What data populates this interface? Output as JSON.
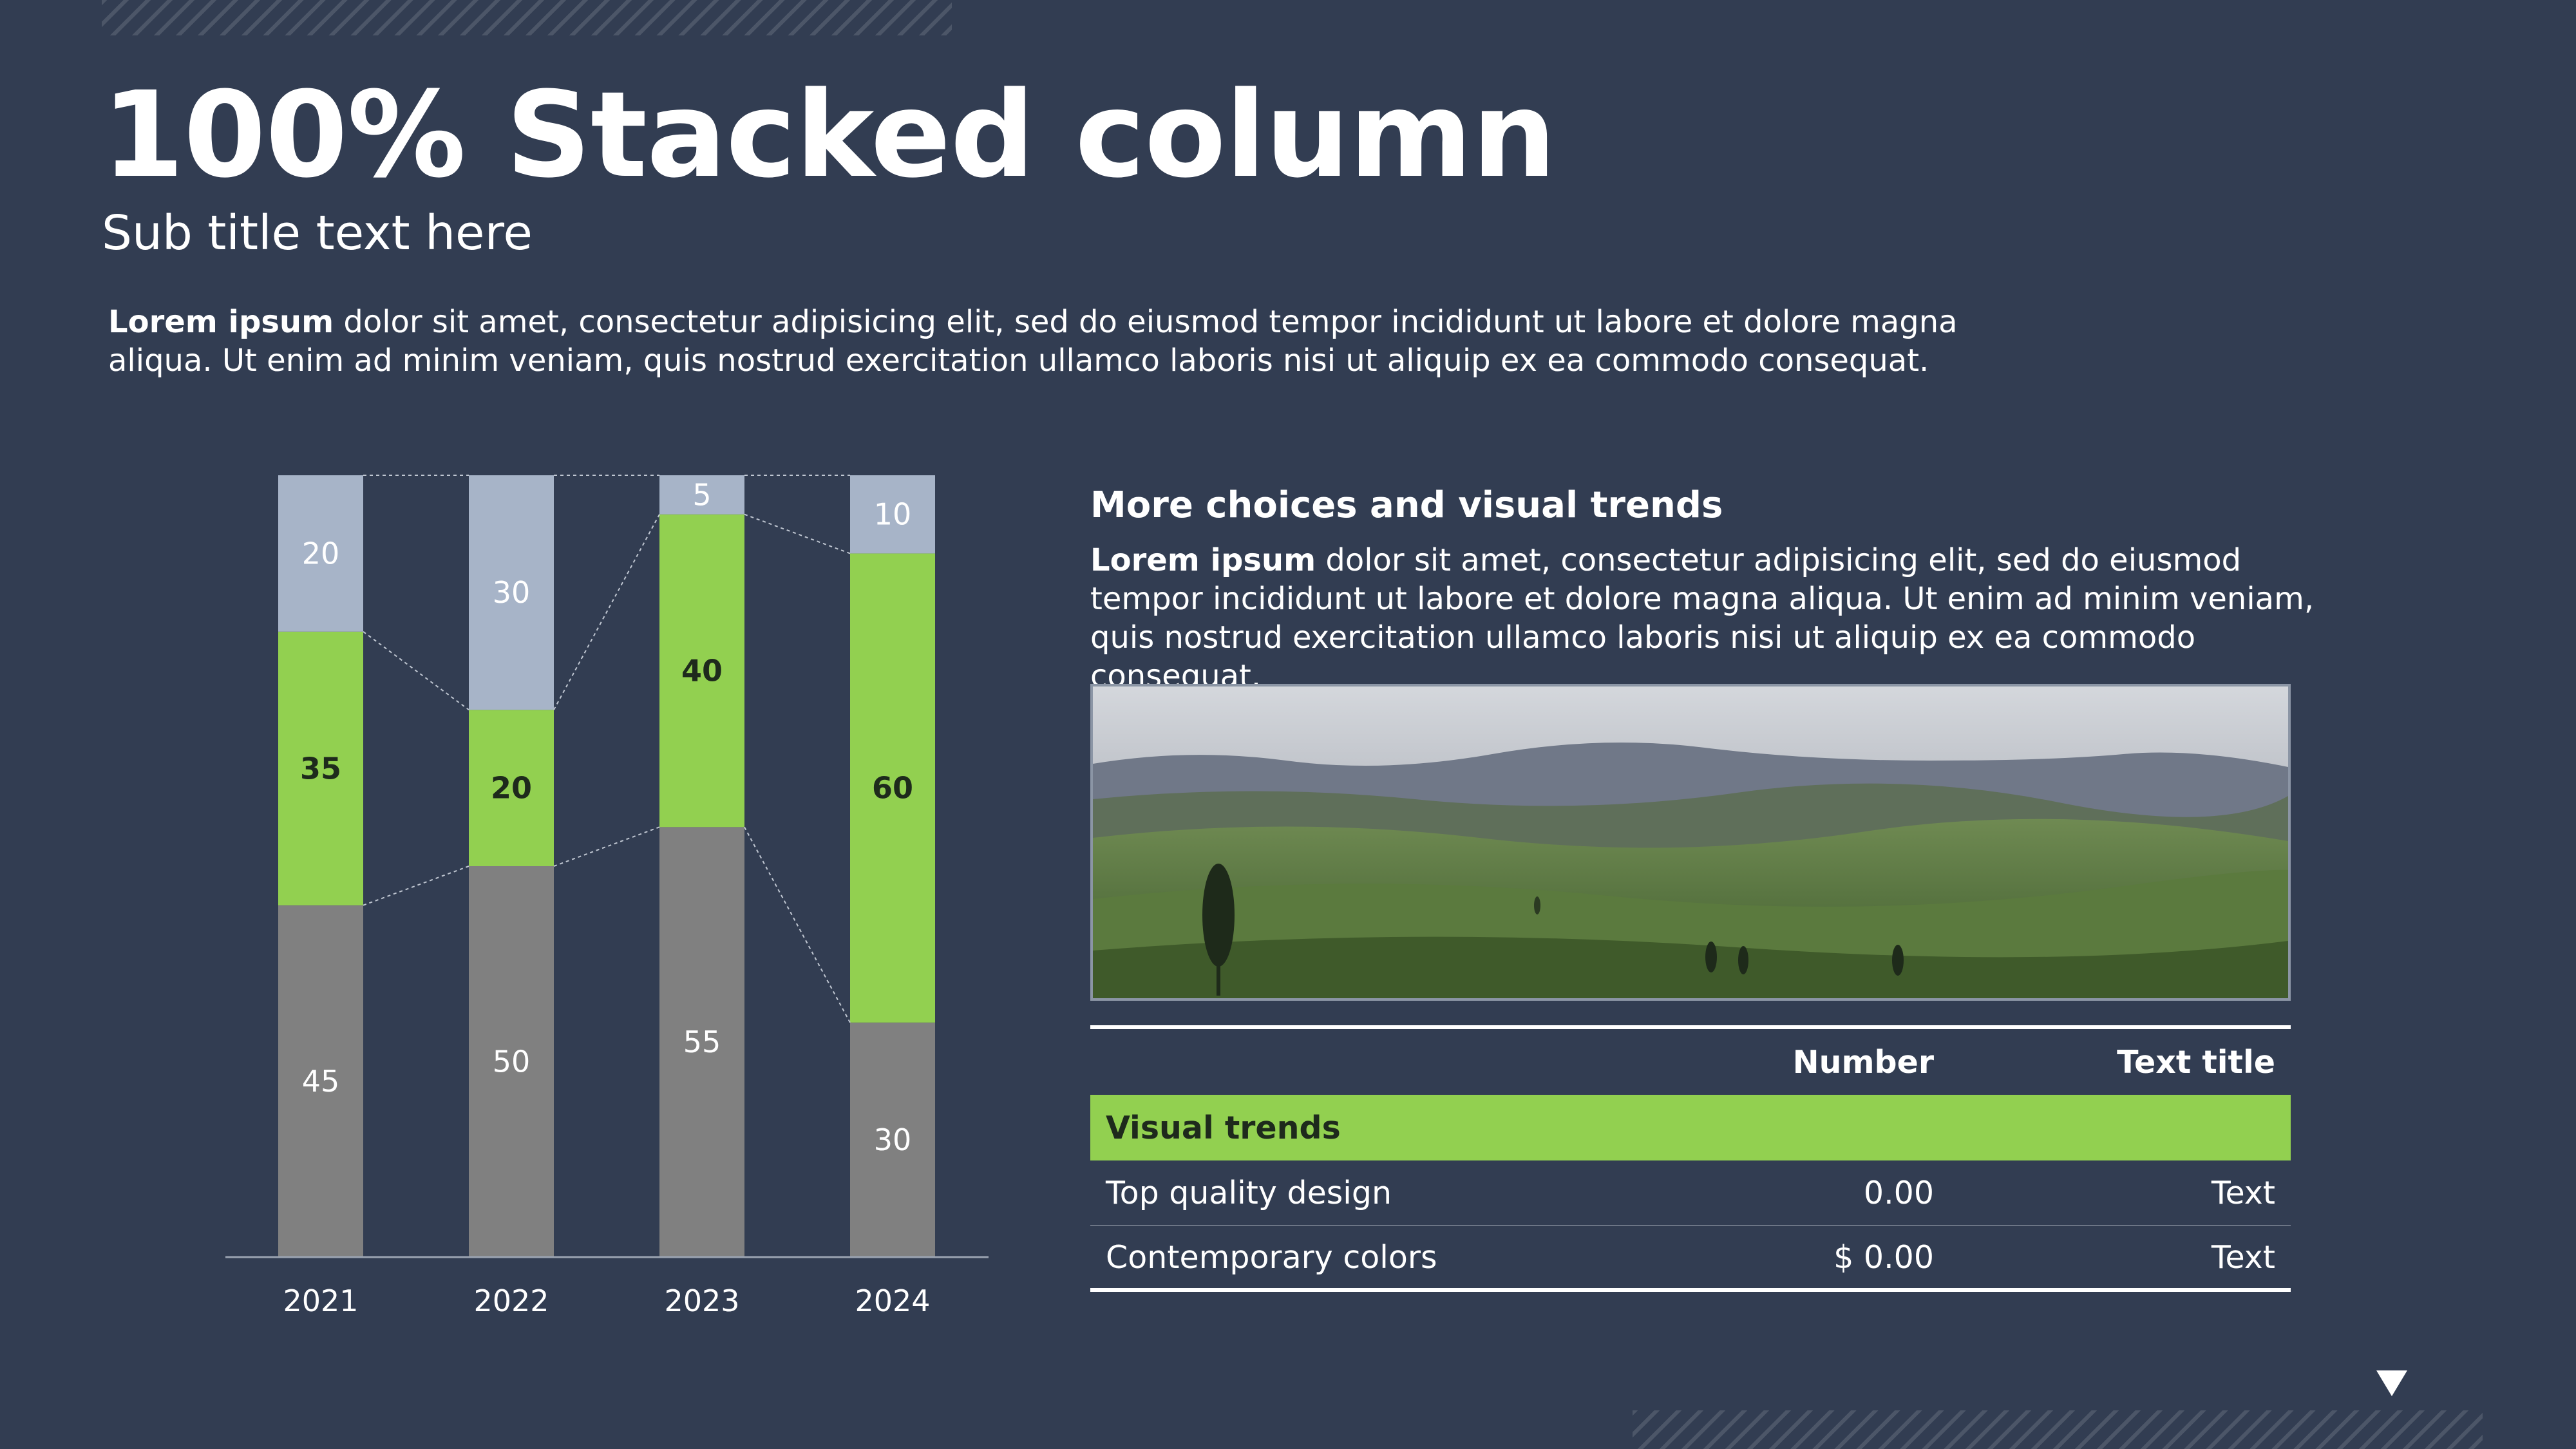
{
  "header": {
    "title": "100% Stacked column",
    "subtitle": "Sub title text here"
  },
  "intro": {
    "bold": "Lorem ipsum",
    "text": " dolor sit amet, consectetur adipisicing elit, sed do eiusmod tempor incididunt ut labore et dolore magna aliqua. Ut enim ad minim veniam, quis nostrud exercitation ullamco laboris nisi ut aliquip ex ea commodo consequat."
  },
  "right_panel": {
    "title": "More choices and visual trends",
    "bold": "Lorem ipsum",
    "text": " dolor sit amet, consectetur adipisicing elit, sed do eiusmod tempor incididunt ut labore et dolore magna aliqua. Ut enim ad minim veniam, quis nostrud exercitation ullamco laboris nisi ut aliquip ex ea commodo consequat."
  },
  "table": {
    "headers": [
      "",
      "Number",
      "Text title"
    ],
    "group": "Visual trends",
    "rows": [
      {
        "label": "Top quality design",
        "number": "0.00",
        "text": "Text"
      },
      {
        "label": "Contemporary colors",
        "number": "$ 0.00",
        "text": "Text"
      }
    ]
  },
  "chart_data": {
    "type": "bar",
    "stacked": "100%",
    "categories": [
      "2021",
      "2022",
      "2023",
      "2024"
    ],
    "series": [
      {
        "values": [
          45,
          50,
          55,
          30
        ],
        "color": "#808080"
      },
      {
        "values": [
          35,
          20,
          40,
          60
        ],
        "color": "#92d050"
      },
      {
        "values": [
          20,
          30,
          5,
          10
        ],
        "color": "#a7b4c8"
      }
    ],
    "ylim": [
      0,
      100
    ],
    "grid": false,
    "legend": "none",
    "connector_lines": true
  },
  "colors": {
    "background": "#323d52",
    "accent": "#92d050"
  },
  "icons": {
    "nav": "triangle-down-icon"
  }
}
